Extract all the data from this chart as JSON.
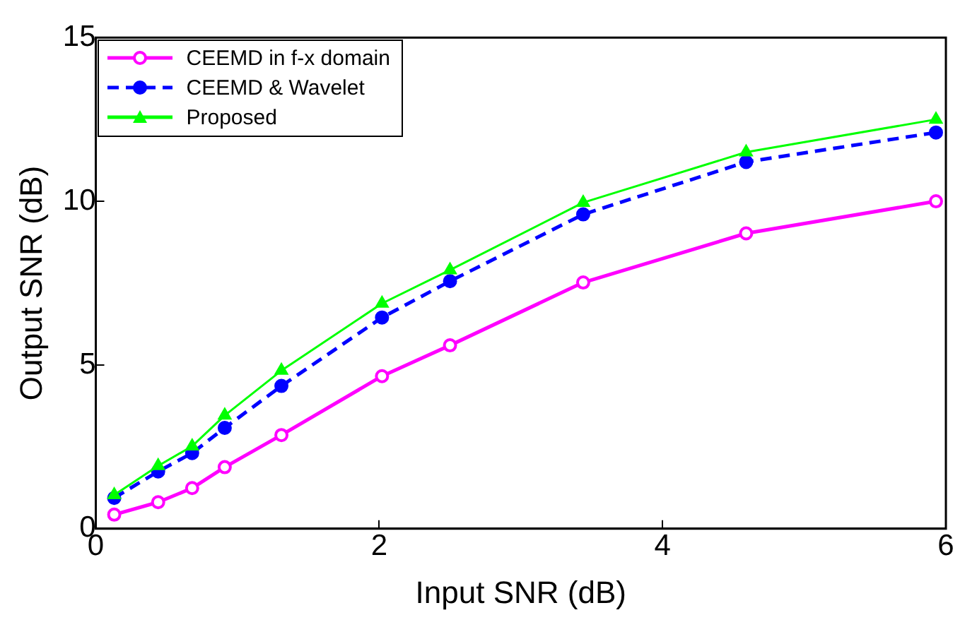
{
  "chart_data": {
    "type": "line",
    "xlabel": "Input SNR (dB)",
    "ylabel": "Output SNR (dB)",
    "xlim": [
      0,
      6
    ],
    "xticks": [
      0,
      2,
      4,
      6
    ],
    "ylim": [
      0,
      15
    ],
    "yticks": [
      0,
      5,
      10,
      15
    ],
    "grid": false,
    "legend": "top left",
    "x": [
      0.13,
      0.44,
      0.68,
      0.91,
      1.31,
      2.02,
      2.5,
      3.44,
      4.59,
      5.93
    ],
    "series": [
      {
        "name": "CEEMD in f-x domain",
        "color": "#ff00ff",
        "marker": "circle",
        "line_style": "solid",
        "values": [
          0.43,
          0.81,
          1.24,
          1.88,
          2.86,
          4.66,
          5.6,
          7.52,
          9.02,
          10.0
        ]
      },
      {
        "name": "CEEMD & Wavelet",
        "color": "#0000ff",
        "marker": "circle",
        "line_style": "dashed",
        "values": [
          0.94,
          1.75,
          2.31,
          3.08,
          4.36,
          6.45,
          7.56,
          9.6,
          11.2,
          12.1
        ]
      },
      {
        "name": "Proposed",
        "color": "#00ff00",
        "marker": "triangle",
        "line_style": "solid",
        "values": [
          1.03,
          1.92,
          2.52,
          3.46,
          4.83,
          6.88,
          7.9,
          9.96,
          11.5,
          12.5
        ]
      }
    ]
  }
}
